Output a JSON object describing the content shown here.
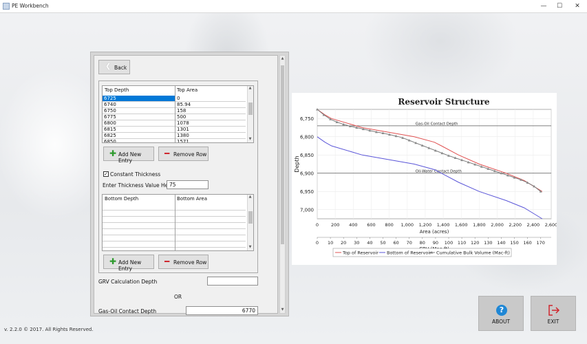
{
  "window": {
    "title": "PE Workbench",
    "minimize": "—",
    "maximize": "☐",
    "close": "✕"
  },
  "footer": {
    "version": "v. 2.2.0 © 2017. All Rights Reserved."
  },
  "panel": {
    "back_label": "Back",
    "top_table": {
      "columns": [
        "Top Depth",
        "Top Area"
      ],
      "rows": [
        [
          "6725",
          "0"
        ],
        [
          "6740",
          "85.94"
        ],
        [
          "6750",
          "158"
        ],
        [
          "6775",
          "500"
        ],
        [
          "6800",
          "1078"
        ],
        [
          "6815",
          "1301"
        ],
        [
          "6825",
          "1380"
        ],
        [
          "6850",
          "1571"
        ]
      ]
    },
    "add_entry_label": "Add New Entry",
    "remove_row_label": "Remove Row",
    "constant_thickness_label": "Constant Thickness",
    "constant_thickness_checked": true,
    "thickness_label": "Enter Thickness Value Here",
    "thickness_value": "75",
    "bottom_table": {
      "columns": [
        "Bottom Depth",
        "Bottom Area"
      ],
      "rows": []
    },
    "grv_label": "GRV Calculation Depth",
    "grv_value": "",
    "or_label": "OR",
    "goc_label": "Gas-Oil Contact Depth",
    "goc_value": "6770"
  },
  "about_label": "ABOUT",
  "exit_label": "EXIT",
  "colors": {
    "top": "#e05050",
    "bottom": "#5a55d8",
    "cbv": "#7a7a7a",
    "ref": "#555555"
  },
  "chart_data": {
    "type": "line",
    "title": "Reservoir Structure",
    "ylabel": "Depth",
    "xlabel": "Area (acres)",
    "x2label": "CBV (Mac-ft)",
    "ylim": [
      6725,
      7025
    ],
    "yticks": [
      "6,750",
      "6,800",
      "6,850",
      "6,900",
      "6,950",
      "7,000"
    ],
    "xlim": [
      0,
      2600
    ],
    "xticks": [
      "0",
      "200",
      "400",
      "600",
      "800",
      "1,000",
      "1,200",
      "1,400",
      "1,600",
      "1,800",
      "2,000",
      "2,200",
      "2,400",
      "2,600"
    ],
    "x2lim": [
      0,
      178
    ],
    "x2ticks": [
      "0",
      "10",
      "20",
      "30",
      "40",
      "50",
      "60",
      "70",
      "80",
      "90",
      "100",
      "110",
      "120",
      "130",
      "140",
      "150",
      "160",
      "170"
    ],
    "reference_lines": [
      {
        "label": "Gas-Oil Contact Depth",
        "y": 6770
      },
      {
        "label": "Oil-Water Contact Depth",
        "y": 6900
      }
    ],
    "series": [
      {
        "name": "Top of Reservoir",
        "axis": "area",
        "x": [
          0,
          85.94,
          158,
          500,
          1078,
          1301,
          1380,
          1571,
          1800,
          2100,
          2300,
          2400,
          2500
        ],
        "y": [
          6725,
          6740,
          6750,
          6775,
          6800,
          6815,
          6825,
          6850,
          6875,
          6900,
          6920,
          6935,
          6950
        ]
      },
      {
        "name": "Bottom of Reservoir",
        "axis": "area",
        "x": [
          0,
          85.94,
          158,
          500,
          1078,
          1301,
          1380,
          1571,
          1800,
          2100,
          2300,
          2400,
          2500
        ],
        "y": [
          6800,
          6815,
          6825,
          6850,
          6875,
          6890,
          6900,
          6925,
          6950,
          6975,
          6995,
          7010,
          7025
        ]
      },
      {
        "name": "Cumulative Bulk Volume (Mac-ft)",
        "axis": "cbv",
        "x": [
          0,
          5,
          10,
          15,
          20,
          25,
          30,
          35,
          40,
          45,
          50,
          55,
          60,
          65,
          70,
          75,
          80,
          85,
          90,
          95,
          100,
          105,
          110,
          115,
          120,
          125,
          130,
          135,
          140,
          145,
          150,
          155,
          160,
          165,
          170
        ],
        "y": [
          6725,
          6740,
          6752,
          6760,
          6766,
          6771,
          6775,
          6779,
          6783,
          6787,
          6790,
          6794,
          6798,
          6803,
          6810,
          6817,
          6824,
          6831,
          6838,
          6845,
          6852,
          6858,
          6864,
          6870,
          6876,
          6882,
          6888,
          6894,
          6900,
          6906,
          6912,
          6918,
          6926,
          6936,
          6950
        ]
      }
    ],
    "legend_position": "bottom"
  }
}
